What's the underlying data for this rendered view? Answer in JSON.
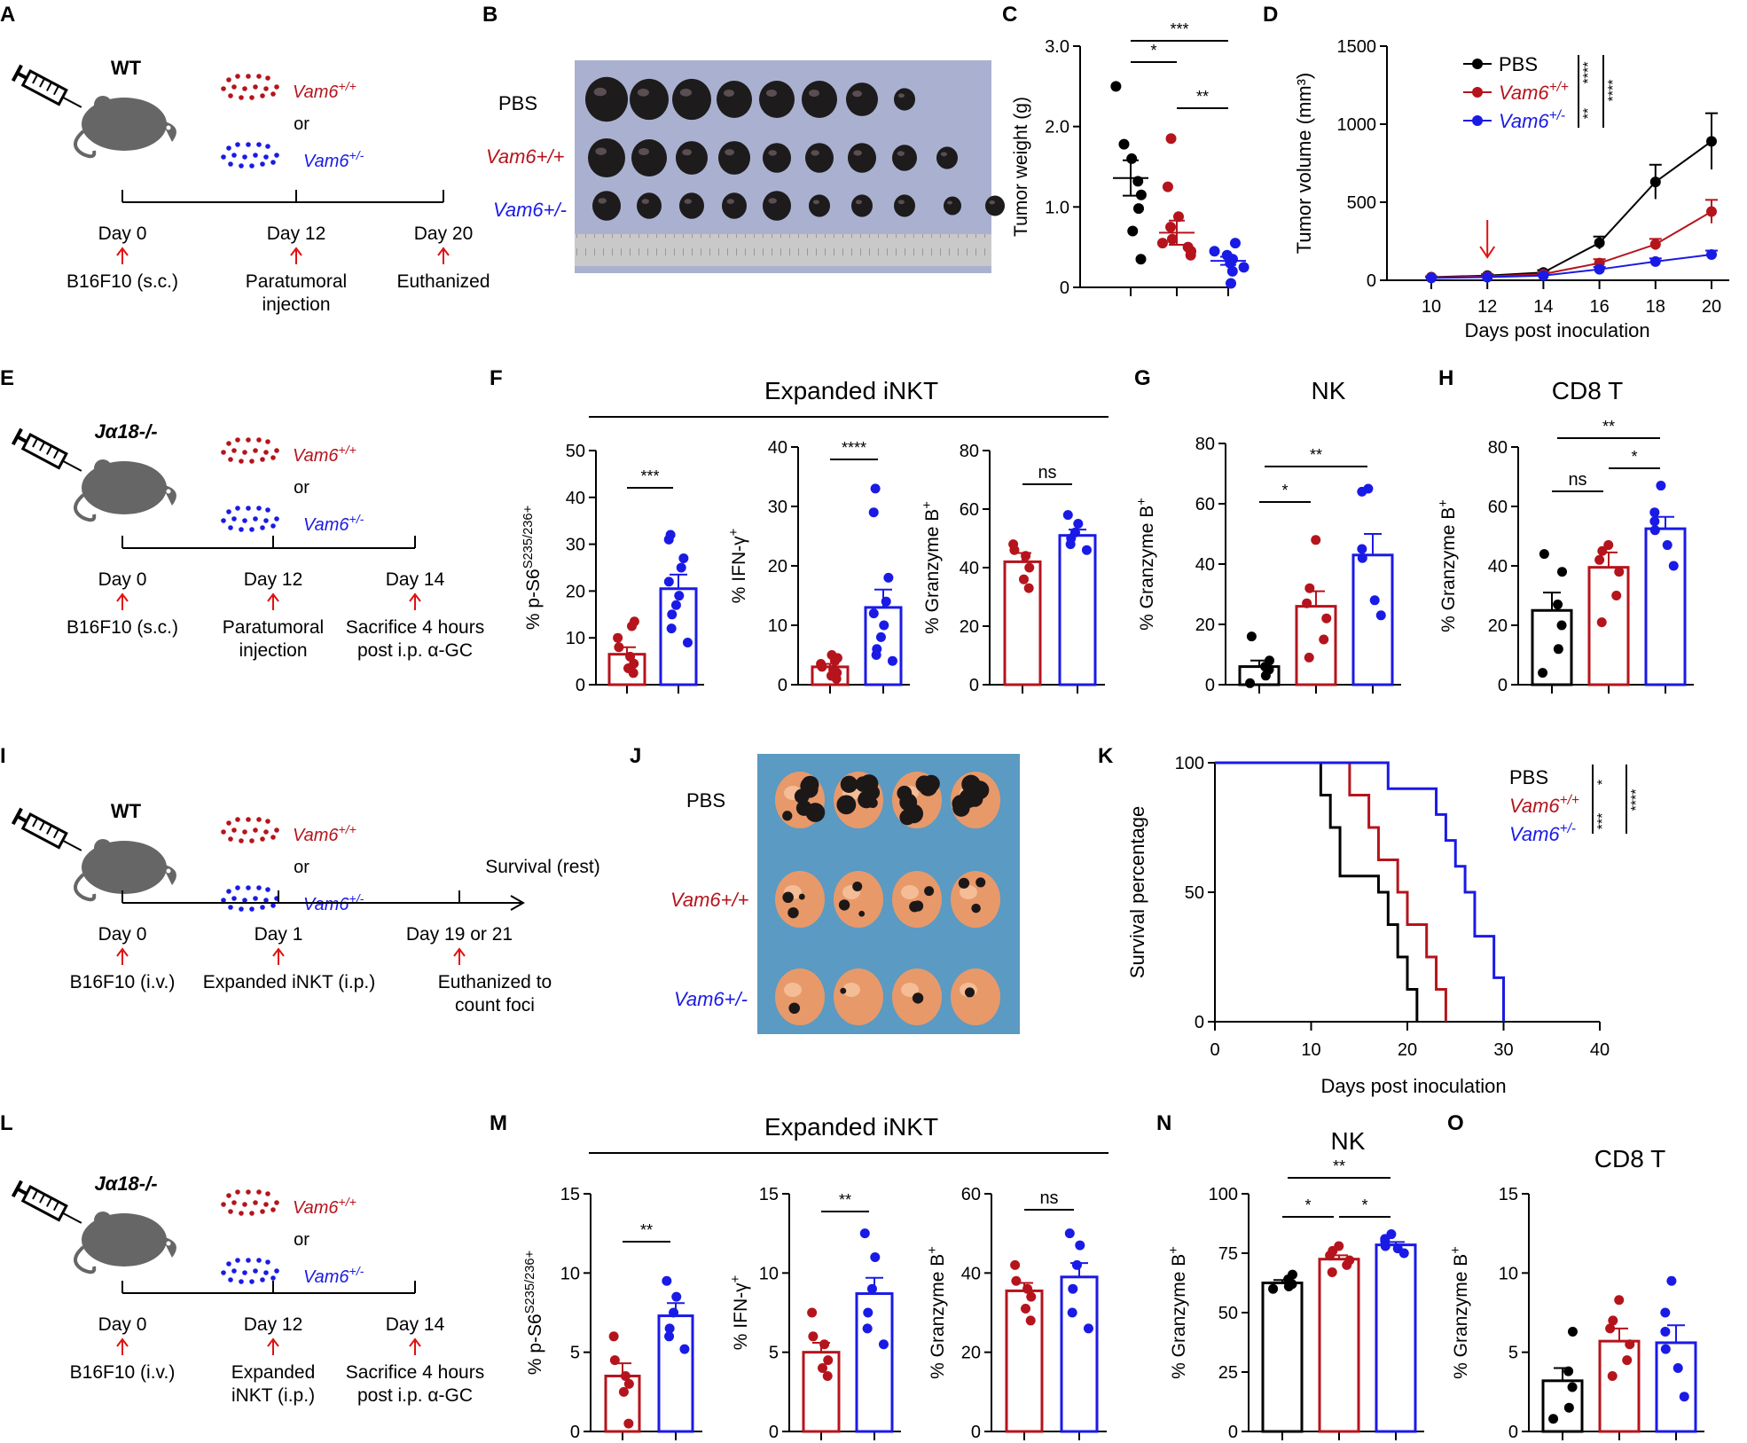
{
  "figure": {
    "panel_letters": [
      "A",
      "B",
      "C",
      "D",
      "E",
      "F",
      "G",
      "H",
      "I",
      "J",
      "K",
      "L",
      "M",
      "N",
      "O"
    ]
  },
  "colors": {
    "pbs": "#000000",
    "wt": "#b5141c",
    "het": "#1a1ae6",
    "arrow": "#e01010"
  },
  "panel_A": {
    "mouse": "WT",
    "cells_top": "Vam6+/+",
    "or": "or",
    "cells_bottom": "Vam6+/-",
    "timeline": [
      {
        "day": "Day 0",
        "event": "B16F10 (s.c.)"
      },
      {
        "day": "Day 12",
        "event": "Paratumoral",
        "event2": "injection"
      },
      {
        "day": "Day 20",
        "event": "Euthanized"
      }
    ]
  },
  "panel_B": {
    "rows": [
      "PBS",
      "Vam6+/+",
      "Vam6+/-"
    ]
  },
  "panel_E": {
    "mouse": "Jα18-/-",
    "cells_top": "Vam6+/+",
    "or": "or",
    "cells_bottom": "Vam6+/-",
    "timeline": [
      {
        "day": "Day 0",
        "event": "B16F10 (s.c.)"
      },
      {
        "day": "Day 12",
        "event": "Paratumoral",
        "event2": "injection"
      },
      {
        "day": "Day 14",
        "event": "Sacrifice 4 hours",
        "event2": "post i.p. α-GC"
      }
    ]
  },
  "panel_I": {
    "mouse": "WT",
    "cells_top": "Vam6+/+",
    "or": "or",
    "cells_bottom": "Vam6+/-",
    "survival": "Survival (rest)",
    "timeline": [
      {
        "day": "Day 0",
        "event": "B16F10 (i.v.)"
      },
      {
        "day": "Day 1",
        "event": "Expanded iNKT (i.p.)"
      },
      {
        "day": "Day 19 or 21",
        "event": "Euthanized to",
        "event2": "count foci"
      }
    ]
  },
  "panel_J": {
    "rows": [
      "PBS",
      "Vam6+/+",
      "Vam6+/-"
    ]
  },
  "panel_L": {
    "mouse": "Jα18-/-",
    "cells_top": "Vam6+/+",
    "or": "or",
    "cells_bottom": "Vam6+/-",
    "timeline": [
      {
        "day": "Day 0",
        "event": "B16F10 (i.v.)"
      },
      {
        "day": "Day 12",
        "event": "Expanded",
        "event2": "iNKT (i.p.)"
      },
      {
        "day": "Day 14",
        "event": "Sacrifice 4 hours",
        "event2": "post i.p. α-GC"
      }
    ]
  },
  "headers": {
    "F": "Expanded iNKT",
    "G": "NK",
    "H": "CD8 T",
    "M": "Expanded iNKT",
    "N": "NK",
    "O": "CD8 T"
  },
  "chart_data": [
    {
      "id": "C",
      "type": "scatter",
      "ylabel": "Tumor weight (g)",
      "ylim": [
        0,
        3.0
      ],
      "yticks": [
        "0",
        "1.0",
        "2.0",
        "3.0"
      ],
      "groups": [
        {
          "name": "PBS",
          "color": "pbs",
          "mean": 1.36,
          "sem": 0.22,
          "points": [
            0.35,
            0.7,
            0.98,
            1.15,
            1.32,
            1.6,
            1.78,
            2.5
          ]
        },
        {
          "name": "Vam6+/+",
          "color": "wt",
          "mean": 0.68,
          "sem": 0.15,
          "points": [
            0.4,
            0.45,
            0.5,
            0.55,
            0.6,
            0.75,
            0.88,
            1.25,
            1.85
          ]
        },
        {
          "name": "Vam6+/-",
          "color": "het",
          "mean": 0.33,
          "sem": 0.05,
          "points": [
            0.05,
            0.2,
            0.25,
            0.3,
            0.35,
            0.4,
            0.45,
            0.55
          ]
        }
      ],
      "significance": [
        {
          "from": 0,
          "to": 1,
          "label": "*"
        },
        {
          "from": 0,
          "to": 2,
          "label": "***"
        },
        {
          "from": 1,
          "to": 2,
          "label": "**"
        }
      ]
    },
    {
      "id": "D",
      "type": "line",
      "xlabel": "Days post inoculation",
      "ylabel": "Tumor volume (mm³)",
      "x": [
        10,
        12,
        14,
        16,
        18,
        20
      ],
      "xlim": [
        9,
        21
      ],
      "ylim": [
        0,
        1500
      ],
      "yticks": [
        0,
        500,
        1000,
        1500
      ],
      "series": [
        {
          "name": "PBS",
          "color": "pbs",
          "values": [
            20,
            30,
            50,
            240,
            630,
            890
          ],
          "sem": [
            5,
            8,
            15,
            40,
            110,
            180
          ]
        },
        {
          "name": "Vam6+/+",
          "color": "wt",
          "values": [
            18,
            25,
            40,
            110,
            230,
            440
          ],
          "sem": [
            5,
            6,
            10,
            25,
            35,
            75
          ]
        },
        {
          "name": "Vam6+/-",
          "color": "het",
          "values": [
            15,
            20,
            30,
            70,
            120,
            165
          ],
          "sem": [
            4,
            5,
            8,
            15,
            20,
            25
          ]
        }
      ],
      "arrow_day": 12,
      "significance": [
        "****",
        "**",
        "****"
      ]
    },
    {
      "id": "F1",
      "type": "bar",
      "ylabel": "% p-S6S235/236+",
      "ylim": [
        0,
        50
      ],
      "yticks": [
        0,
        10,
        20,
        30,
        40,
        50
      ],
      "groups": [
        {
          "name": "Vam6+/+",
          "color": "wt",
          "mean": 6.5,
          "sem": 1.5,
          "points": [
            2.5,
            3.5,
            4.5,
            6,
            8,
            10,
            12.5,
            13.5
          ]
        },
        {
          "name": "Vam6+/-",
          "color": "het",
          "mean": 20.5,
          "sem": 3,
          "points": [
            9,
            12,
            15,
            17,
            19,
            22,
            25,
            27,
            31,
            32
          ]
        }
      ],
      "significance": [
        {
          "from": 0,
          "to": 1,
          "label": "***"
        }
      ]
    },
    {
      "id": "F2",
      "type": "bar",
      "ylabel": "% IFN-γ+",
      "ylim": [
        0,
        40
      ],
      "yticks": [
        0,
        10,
        20,
        30,
        40
      ],
      "groups": [
        {
          "name": "Vam6+/+",
          "color": "wt",
          "mean": 3,
          "sem": 0.5,
          "points": [
            1,
            1.5,
            2,
            2.5,
            3,
            3.5,
            4,
            4.5,
            5
          ]
        },
        {
          "name": "Vam6+/-",
          "color": "het",
          "mean": 13,
          "sem": 3,
          "points": [
            4,
            5,
            6,
            8,
            10,
            12,
            14,
            18,
            29,
            33
          ]
        }
      ],
      "significance": [
        {
          "from": 0,
          "to": 1,
          "label": "****"
        }
      ]
    },
    {
      "id": "F3",
      "type": "bar",
      "ylabel": "% Granzyme B+",
      "ylim": [
        0,
        80
      ],
      "yticks": [
        0,
        20,
        40,
        60,
        80
      ],
      "groups": [
        {
          "name": "Vam6+/+",
          "color": "wt",
          "mean": 42,
          "sem": 3,
          "points": [
            33,
            36,
            40,
            44,
            46,
            48
          ]
        },
        {
          "name": "Vam6+/-",
          "color": "het",
          "mean": 51,
          "sem": 2,
          "points": [
            46,
            48,
            50,
            52,
            55,
            58
          ]
        }
      ],
      "significance": [
        {
          "from": 0,
          "to": 1,
          "label": "ns"
        }
      ]
    },
    {
      "id": "G",
      "type": "bar",
      "ylabel": "% Granzyme B+",
      "ylim": [
        0,
        80
      ],
      "yticks": [
        0,
        20,
        40,
        60,
        80
      ],
      "groups": [
        {
          "name": "PBS",
          "color": "pbs",
          "mean": 6,
          "sem": 2,
          "points": [
            0.5,
            3,
            5,
            6,
            8,
            16
          ]
        },
        {
          "name": "Vam6+/+",
          "color": "wt",
          "mean": 26,
          "sem": 5,
          "points": [
            9,
            15,
            22,
            27,
            32,
            48
          ]
        },
        {
          "name": "Vam6+/-",
          "color": "het",
          "mean": 43,
          "sem": 7,
          "points": [
            23,
            28,
            42,
            45,
            64,
            65
          ]
        }
      ],
      "significance": [
        {
          "from": 0,
          "to": 1,
          "label": "*"
        },
        {
          "from": 0,
          "to": 2,
          "label": "**"
        }
      ]
    },
    {
      "id": "H",
      "type": "bar",
      "ylabel": "% Granzyme B+",
      "ylim": [
        0,
        80
      ],
      "yticks": [
        0,
        20,
        40,
        60,
        80
      ],
      "groups": [
        {
          "name": "PBS",
          "color": "pbs",
          "mean": 25,
          "sem": 6,
          "points": [
            4,
            12,
            20,
            27,
            38,
            44
          ]
        },
        {
          "name": "Vam6+/+",
          "color": "wt",
          "mean": 39.5,
          "sem": 5,
          "points": [
            21,
            30,
            38,
            42,
            45,
            47
          ]
        },
        {
          "name": "Vam6+/-",
          "color": "het",
          "mean": 52.5,
          "sem": 4,
          "points": [
            40,
            47,
            52,
            55,
            58,
            67
          ]
        }
      ],
      "significance": [
        {
          "from": 0,
          "to": 1,
          "label": "ns"
        },
        {
          "from": 0,
          "to": 2,
          "label": "**"
        },
        {
          "from": 1,
          "to": 2,
          "label": "*"
        }
      ]
    },
    {
      "id": "K",
      "type": "line",
      "xlabel": "Days post inoculation",
      "ylabel": "Survival percentage",
      "xlim": [
        0,
        40
      ],
      "ylim": [
        0,
        100
      ],
      "xticks": [
        0,
        10,
        20,
        30,
        40
      ],
      "yticks": [
        0,
        50,
        100
      ],
      "series": [
        {
          "name": "PBS",
          "color": "pbs",
          "steps": [
            [
              0,
              100
            ],
            [
              11,
              100
            ],
            [
              11,
              87.5
            ],
            [
              12,
              87.5
            ],
            [
              12,
              75
            ],
            [
              13,
              75
            ],
            [
              13,
              56.25
            ],
            [
              17,
              56.25
            ],
            [
              17,
              50
            ],
            [
              18,
              50
            ],
            [
              18,
              37.5
            ],
            [
              19,
              37.5
            ],
            [
              19,
              25
            ],
            [
              20,
              25
            ],
            [
              20,
              12.5
            ],
            [
              21,
              12.5
            ],
            [
              21,
              0
            ]
          ]
        },
        {
          "name": "Vam6+/+",
          "color": "wt",
          "steps": [
            [
              0,
              100
            ],
            [
              14,
              100
            ],
            [
              14,
              87.5
            ],
            [
              16,
              87.5
            ],
            [
              16,
              75
            ],
            [
              17,
              75
            ],
            [
              17,
              62.5
            ],
            [
              19,
              62.5
            ],
            [
              19,
              50
            ],
            [
              20,
              50
            ],
            [
              20,
              37.5
            ],
            [
              22,
              37.5
            ],
            [
              22,
              25
            ],
            [
              23,
              25
            ],
            [
              23,
              12.5
            ],
            [
              24,
              12.5
            ],
            [
              24,
              0
            ]
          ]
        },
        {
          "name": "Vam6+/-",
          "color": "het",
          "steps": [
            [
              0,
              100
            ],
            [
              18,
              100
            ],
            [
              18,
              90
            ],
            [
              23,
              90
            ],
            [
              23,
              80
            ],
            [
              24,
              80
            ],
            [
              24,
              70
            ],
            [
              25,
              70
            ],
            [
              25,
              60
            ],
            [
              26,
              60
            ],
            [
              26,
              50
            ],
            [
              27,
              50
            ],
            [
              27,
              33
            ],
            [
              29,
              33
            ],
            [
              29,
              17
            ],
            [
              30,
              17
            ],
            [
              30,
              0
            ]
          ]
        }
      ],
      "significance": [
        "*",
        "***",
        "****"
      ]
    },
    {
      "id": "M1",
      "type": "bar",
      "ylabel": "% p-S6S235/236+",
      "ylim": [
        0,
        15
      ],
      "yticks": [
        0,
        5,
        10,
        15
      ],
      "groups": [
        {
          "name": "Vam6+/+",
          "color": "wt",
          "mean": 3.5,
          "sem": 0.8,
          "points": [
            0.5,
            2.5,
            3,
            3.5,
            4.5,
            6
          ]
        },
        {
          "name": "Vam6+/-",
          "color": "het",
          "mean": 7.3,
          "sem": 0.8,
          "points": [
            5.2,
            6,
            6.5,
            7.5,
            8.5,
            9.5
          ]
        }
      ],
      "significance": [
        {
          "from": 0,
          "to": 1,
          "label": "**"
        }
      ]
    },
    {
      "id": "M2",
      "type": "bar",
      "ylabel": "% IFN-γ+",
      "ylim": [
        0,
        15
      ],
      "yticks": [
        0,
        5,
        10,
        15
      ],
      "groups": [
        {
          "name": "Vam6+/+",
          "color": "wt",
          "mean": 5,
          "sem": 0.6,
          "points": [
            3.5,
            4,
            4.5,
            5.5,
            6,
            7.5
          ]
        },
        {
          "name": "Vam6+/-",
          "color": "het",
          "mean": 8.7,
          "sem": 1.0,
          "points": [
            5.5,
            6.5,
            7.5,
            9,
            11,
            12.5
          ]
        }
      ],
      "significance": [
        {
          "from": 0,
          "to": 1,
          "label": "**"
        }
      ]
    },
    {
      "id": "M3",
      "type": "bar",
      "ylabel": "% Granzyme B+",
      "ylim": [
        0,
        60
      ],
      "yticks": [
        0,
        20,
        40,
        60
      ],
      "groups": [
        {
          "name": "Vam6+/+",
          "color": "wt",
          "mean": 35.5,
          "sem": 2,
          "points": [
            28,
            31,
            34,
            36,
            38,
            42
          ]
        },
        {
          "name": "Vam6+/-",
          "color": "het",
          "mean": 39,
          "sem": 3.5,
          "points": [
            26,
            30,
            36,
            42,
            47,
            50
          ]
        }
      ],
      "significance": [
        {
          "from": 0,
          "to": 1,
          "label": "ns"
        }
      ]
    },
    {
      "id": "N",
      "type": "bar",
      "ylabel": "% Granzyme B+",
      "ylim": [
        0,
        100
      ],
      "yticks": [
        0,
        25,
        50,
        75,
        100
      ],
      "groups": [
        {
          "name": "PBS",
          "color": "pbs",
          "mean": 62.5,
          "sem": 1.2,
          "points": [
            60,
            61,
            62,
            64,
            66
          ]
        },
        {
          "name": "Vam6+/+",
          "color": "wt",
          "mean": 72.5,
          "sem": 1.6,
          "points": [
            67,
            70,
            72,
            74,
            76,
            78
          ]
        },
        {
          "name": "Vam6+/-",
          "color": "het",
          "mean": 78.5,
          "sem": 1.2,
          "points": [
            75,
            77,
            78,
            80,
            81,
            83
          ]
        }
      ],
      "significance": [
        {
          "from": 0,
          "to": 1,
          "label": "*"
        },
        {
          "from": 0,
          "to": 2,
          "label": "**"
        },
        {
          "from": 1,
          "to": 2,
          "label": "*"
        }
      ]
    },
    {
      "id": "O",
      "type": "bar",
      "ylabel": "% Granzyme B+",
      "ylim": [
        0,
        15
      ],
      "yticks": [
        0,
        5,
        10,
        15
      ],
      "groups": [
        {
          "name": "PBS",
          "color": "pbs",
          "mean": 3.2,
          "sem": 0.8,
          "points": [
            0.8,
            1.5,
            2.8,
            3.8,
            6.3
          ]
        },
        {
          "name": "Vam6+/+",
          "color": "wt",
          "mean": 5.7,
          "sem": 0.8,
          "points": [
            3.5,
            4.5,
            5.5,
            6.5,
            7.0,
            8.3
          ]
        },
        {
          "name": "Vam6+/-",
          "color": "het",
          "mean": 5.6,
          "sem": 1.1,
          "points": [
            2.2,
            4,
            5.2,
            6.3,
            7.5,
            9.5
          ]
        }
      ],
      "significance": []
    }
  ]
}
